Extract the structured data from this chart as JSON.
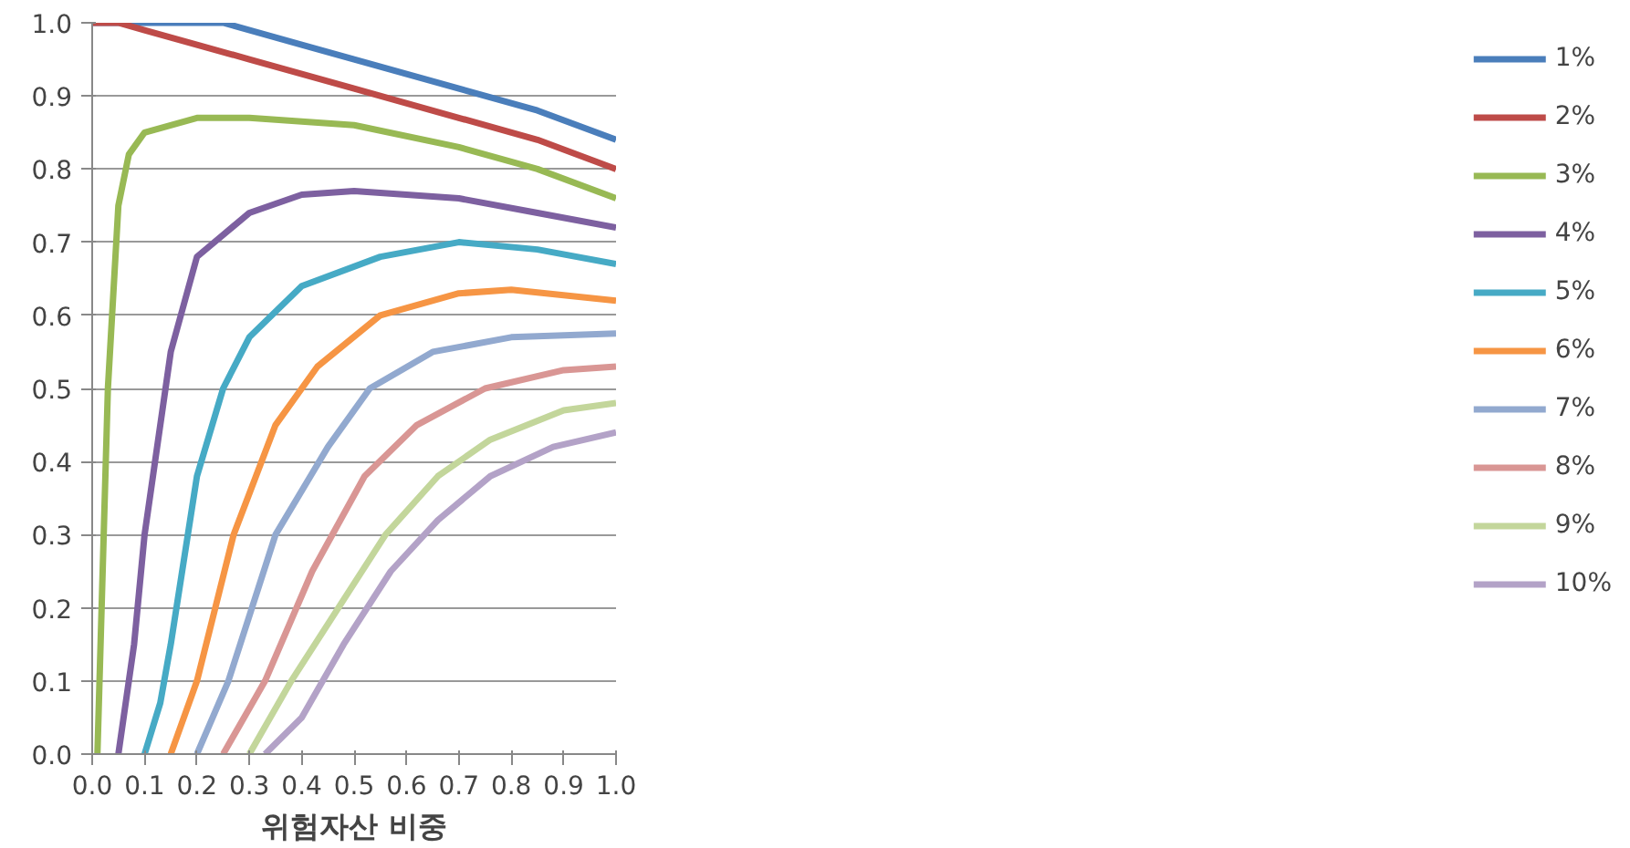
{
  "chart_data": {
    "type": "line",
    "xlabel": "위험자산 비중",
    "xlim": [
      0,
      1
    ],
    "ylim": [
      0,
      1
    ],
    "xticks": [
      {
        "value": 0,
        "label": "0.0"
      },
      {
        "value": 0.1,
        "label": "0.1"
      },
      {
        "value": 0.2,
        "label": "0.2"
      },
      {
        "value": 0.3,
        "label": "0.3"
      },
      {
        "value": 0.4,
        "label": "0.4"
      },
      {
        "value": 0.5,
        "label": "0.5"
      },
      {
        "value": 0.6,
        "label": "0.6"
      },
      {
        "value": 0.7,
        "label": "0.7"
      },
      {
        "value": 0.8,
        "label": "0.8"
      },
      {
        "value": 0.9,
        "label": "0.9"
      },
      {
        "value": 1,
        "label": "1.0"
      }
    ],
    "yticks": [
      {
        "value": 0,
        "label": "0.0"
      },
      {
        "value": 0.1,
        "label": "0.1"
      },
      {
        "value": 0.2,
        "label": "0.2"
      },
      {
        "value": 0.3,
        "label": "0.3"
      },
      {
        "value": 0.4,
        "label": "0.4"
      },
      {
        "value": 0.5,
        "label": "0.5"
      },
      {
        "value": 0.6,
        "label": "0.6"
      },
      {
        "value": 0.7,
        "label": "0.7"
      },
      {
        "value": 0.8,
        "label": "0.8"
      },
      {
        "value": 0.9,
        "label": "0.9"
      },
      {
        "value": 1,
        "label": "1.0"
      }
    ],
    "grid": "y",
    "legend": "right",
    "marker": "none",
    "line_style": "solid",
    "series": [
      {
        "name": "1%",
        "color": "#4a7ebb",
        "x": [
          0,
          0.1,
          0.25,
          0.4,
          0.5,
          0.7,
          0.85,
          1.0
        ],
        "values": [
          1.0,
          1.0,
          1.0,
          0.97,
          0.95,
          0.91,
          0.88,
          0.84
        ]
      },
      {
        "name": "2%",
        "color": "#be4b48",
        "x": [
          0,
          0.05,
          0.1,
          0.2,
          0.3,
          0.5,
          0.7,
          0.85,
          1.0
        ],
        "values": [
          1.0,
          1.0,
          0.99,
          0.97,
          0.95,
          0.91,
          0.87,
          0.84,
          0.8
        ]
      },
      {
        "name": "3%",
        "color": "#98b954",
        "x": [
          0.01,
          0.03,
          0.05,
          0.07,
          0.1,
          0.2,
          0.3,
          0.5,
          0.7,
          0.85,
          1.0
        ],
        "values": [
          0,
          0.5,
          0.75,
          0.82,
          0.85,
          0.87,
          0.87,
          0.86,
          0.83,
          0.8,
          0.76
        ]
      },
      {
        "name": "4%",
        "color": "#7d60a0",
        "x": [
          0.05,
          0.08,
          0.1,
          0.15,
          0.2,
          0.3,
          0.4,
          0.5,
          0.7,
          0.85,
          1.0
        ],
        "values": [
          0,
          0.15,
          0.3,
          0.55,
          0.68,
          0.74,
          0.765,
          0.77,
          0.76,
          0.74,
          0.72
        ]
      },
      {
        "name": "5%",
        "color": "#46aac5",
        "x": [
          0.1,
          0.13,
          0.15,
          0.2,
          0.25,
          0.3,
          0.4,
          0.55,
          0.7,
          0.85,
          1.0
        ],
        "values": [
          0,
          0.07,
          0.15,
          0.38,
          0.5,
          0.57,
          0.64,
          0.68,
          0.7,
          0.69,
          0.67
        ]
      },
      {
        "name": "6%",
        "color": "#f69544",
        "x": [
          0.15,
          0.2,
          0.27,
          0.35,
          0.43,
          0.55,
          0.7,
          0.8,
          1.0
        ],
        "values": [
          0,
          0.1,
          0.3,
          0.45,
          0.53,
          0.6,
          0.63,
          0.635,
          0.62
        ]
      },
      {
        "name": "7%",
        "color": "#92a9cf",
        "x": [
          0.2,
          0.26,
          0.35,
          0.45,
          0.53,
          0.65,
          0.8,
          1.0
        ],
        "values": [
          0,
          0.1,
          0.3,
          0.42,
          0.5,
          0.55,
          0.57,
          0.575
        ]
      },
      {
        "name": "8%",
        "color": "#d99694",
        "x": [
          0.25,
          0.33,
          0.42,
          0.52,
          0.62,
          0.75,
          0.9,
          1.0
        ],
        "values": [
          0,
          0.1,
          0.25,
          0.38,
          0.45,
          0.5,
          0.525,
          0.53
        ]
      },
      {
        "name": "9%",
        "color": "#c3d69b",
        "x": [
          0.3,
          0.38,
          0.47,
          0.56,
          0.66,
          0.76,
          0.9,
          1.0
        ],
        "values": [
          0,
          0.1,
          0.2,
          0.3,
          0.38,
          0.43,
          0.47,
          0.48
        ]
      },
      {
        "name": "10%",
        "color": "#b3a2c7",
        "x": [
          0.33,
          0.4,
          0.48,
          0.57,
          0.66,
          0.76,
          0.88,
          1.0
        ],
        "values": [
          0,
          0.05,
          0.15,
          0.25,
          0.32,
          0.38,
          0.42,
          0.44
        ]
      }
    ]
  }
}
